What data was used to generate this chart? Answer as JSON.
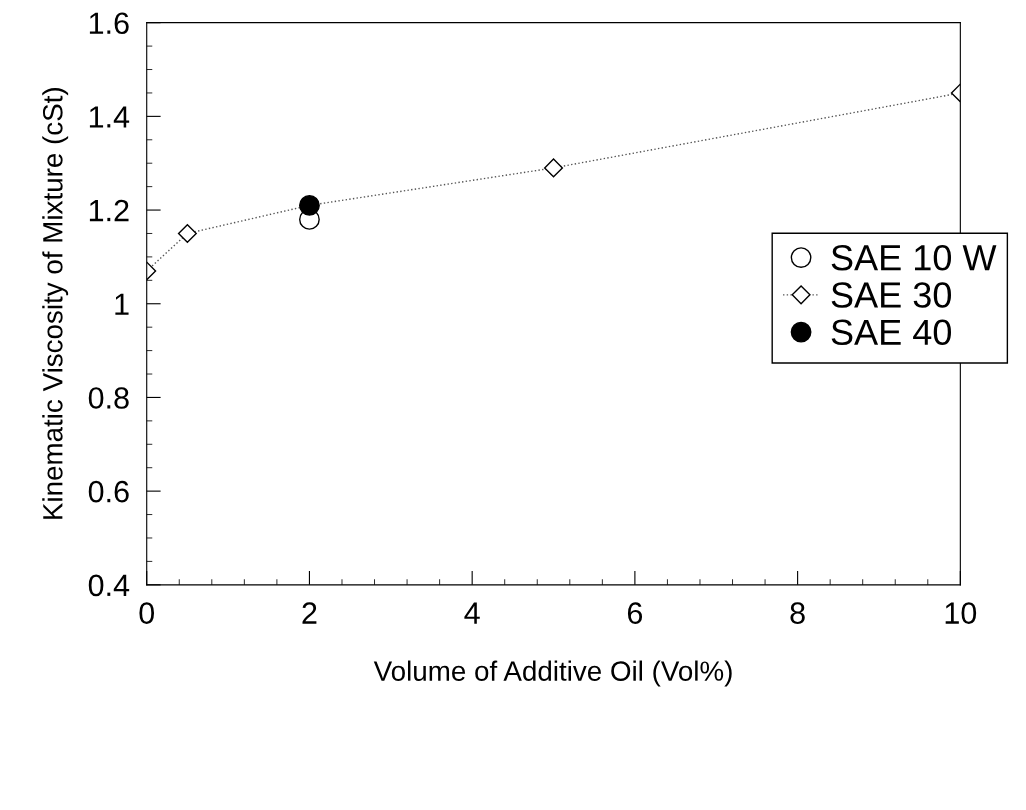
{
  "chart_data": {
    "type": "line",
    "xlabel": "Volume of Additive Oil (Vol%)",
    "ylabel": "Kinematic Viscosity of Mixture (cSt)",
    "series": [
      {
        "name": "SAE 10 W",
        "type": "scatter",
        "marker": "circle",
        "color": "#ffffff",
        "x": [
          2
        ],
        "values": [
          1.18
        ]
      },
      {
        "name": "SAE 30",
        "marker": "diamond",
        "line_style": "dotted",
        "color": "#555555",
        "x": [
          0,
          0.5,
          2,
          5,
          10
        ],
        "values": [
          1.07,
          1.15,
          1.21,
          1.29,
          1.45
        ]
      },
      {
        "name": "SAE 40",
        "type": "scatter",
        "marker": "circle",
        "color": "#000000",
        "x": [
          2
        ],
        "values": [
          1.21
        ]
      }
    ],
    "xlim": [
      0,
      10
    ],
    "xticks": [
      0,
      2,
      4,
      6,
      8,
      10
    ],
    "ylim": [
      0.4,
      1.6
    ],
    "yticks": [
      0.4,
      0.6,
      0.8,
      {
        "value": 1.0,
        "label": "1"
      },
      1.2,
      1.4,
      1.6
    ],
    "grid": false,
    "legend": "right"
  }
}
